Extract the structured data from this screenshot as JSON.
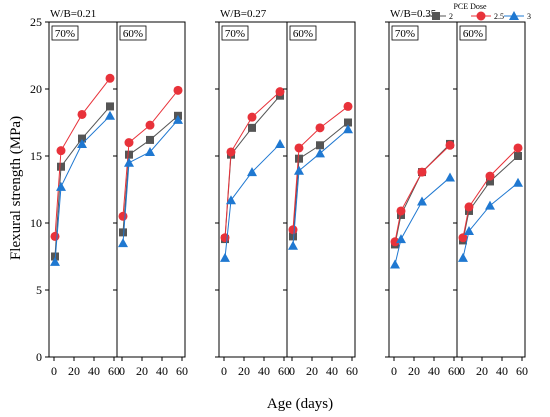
{
  "chart_data": {
    "type": "line",
    "ylabel": "Flexural strength (MPa)",
    "xlabel": "Age (days)",
    "ylim": [
      0,
      25
    ],
    "xlim": [
      -5,
      63
    ],
    "yticks": [
      "0",
      "5",
      "10",
      "15",
      "20",
      "25"
    ],
    "xticks": [
      "0",
      "20",
      "40",
      "60"
    ],
    "legend": {
      "title": "PCE Dose",
      "placement": "top-right",
      "entries": [
        {
          "label": "2",
          "color": "#555555",
          "marker": "square"
        },
        {
          "label": "2.5",
          "color": "#e8323a",
          "marker": "circle"
        },
        {
          "label": "3",
          "color": "#1f78d1",
          "marker": "triangle"
        }
      ]
    },
    "x": [
      1,
      7,
      28,
      56
    ],
    "groups": [
      {
        "label": "W/B=0.21",
        "panels": [
          {
            "label": "70%",
            "series": [
              {
                "name": "2",
                "values": [
                  7.5,
                  14.2,
                  16.3,
                  18.7
                ]
              },
              {
                "name": "2.5",
                "values": [
                  9.0,
                  15.4,
                  18.1,
                  20.8
                ]
              },
              {
                "name": "3",
                "values": [
                  7.1,
                  12.7,
                  15.9,
                  18.0
                ]
              }
            ]
          },
          {
            "label": "60%",
            "series": [
              {
                "name": "2",
                "values": [
                  9.3,
                  15.1,
                  16.2,
                  18.0
                ]
              },
              {
                "name": "2.5",
                "values": [
                  10.5,
                  16.0,
                  17.3,
                  19.9
                ]
              },
              {
                "name": "3",
                "values": [
                  8.5,
                  14.5,
                  15.3,
                  17.7
                ]
              }
            ]
          }
        ]
      },
      {
        "label": "W/B=0.27",
        "panels": [
          {
            "label": "70%",
            "series": [
              {
                "name": "2",
                "values": [
                  8.8,
                  15.1,
                  17.1,
                  19.5
                ]
              },
              {
                "name": "2.5",
                "values": [
                  8.9,
                  15.3,
                  17.9,
                  19.8
                ]
              },
              {
                "name": "3",
                "values": [
                  7.4,
                  11.7,
                  13.8,
                  15.9
                ]
              }
            ]
          },
          {
            "label": "60%",
            "series": [
              {
                "name": "2",
                "values": [
                  9.0,
                  14.8,
                  15.8,
                  17.5
                ]
              },
              {
                "name": "2.5",
                "values": [
                  9.5,
                  15.6,
                  17.1,
                  18.7
                ]
              },
              {
                "name": "3",
                "values": [
                  8.3,
                  13.9,
                  15.2,
                  17.0
                ]
              }
            ]
          }
        ]
      },
      {
        "label": "W/B=0.35",
        "panels": [
          {
            "label": "70%",
            "series": [
              {
                "name": "2",
                "values": [
                  8.4,
                  10.6,
                  13.8,
                  15.9
                ]
              },
              {
                "name": "2.5",
                "values": [
                  8.6,
                  10.9,
                  13.8,
                  15.8
                ]
              },
              {
                "name": "3",
                "values": [
                  6.9,
                  8.8,
                  11.6,
                  13.4
                ]
              }
            ]
          },
          {
            "label": "60%",
            "series": [
              {
                "name": "2",
                "values": [
                  8.7,
                  10.9,
                  13.1,
                  15.0
                ]
              },
              {
                "name": "2.5",
                "values": [
                  8.9,
                  11.2,
                  13.5,
                  15.6
                ]
              },
              {
                "name": "3",
                "values": [
                  7.4,
                  9.4,
                  11.3,
                  13.0
                ]
              }
            ]
          }
        ]
      }
    ]
  }
}
